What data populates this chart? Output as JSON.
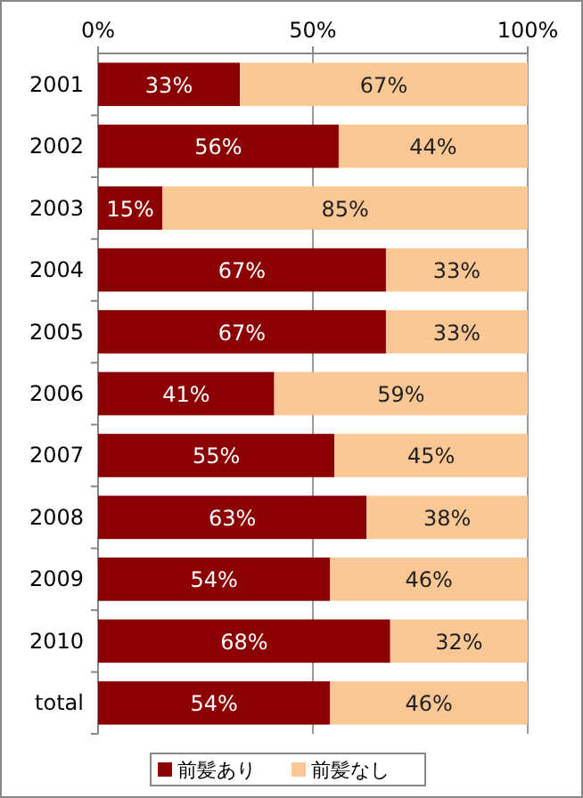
{
  "chart_data": {
    "type": "bar",
    "orientation": "horizontal",
    "stacked": true,
    "categories": [
      "2001",
      "2002",
      "2003",
      "2004",
      "2005",
      "2006",
      "2007",
      "2008",
      "2009",
      "2010",
      "total"
    ],
    "series": [
      {
        "name": "前髪あり",
        "color": "#8b0000",
        "values": [
          33,
          56,
          15,
          67,
          67,
          41,
          55,
          62.5,
          54,
          68,
          54
        ],
        "value_labels": [
          "33%",
          "56%",
          "15%",
          "67%",
          "67%",
          "41%",
          "55%",
          "63%",
          "54%",
          "68%",
          "54%"
        ]
      },
      {
        "name": "前髪なし",
        "color": "#fac795",
        "values": [
          67,
          44,
          85,
          33,
          33,
          59,
          45,
          37.5,
          46,
          32,
          46
        ],
        "value_labels": [
          "67%",
          "44%",
          "85%",
          "33%",
          "33%",
          "59%",
          "45%",
          "38%",
          "46%",
          "32%",
          "46%"
        ]
      }
    ],
    "xlim": [
      0,
      100
    ],
    "xticks": [
      {
        "value": 0,
        "label": "0%"
      },
      {
        "value": 50,
        "label": "50%"
      },
      {
        "value": 100,
        "label": "100%"
      }
    ],
    "grid": "x",
    "legend": "bottom"
  }
}
